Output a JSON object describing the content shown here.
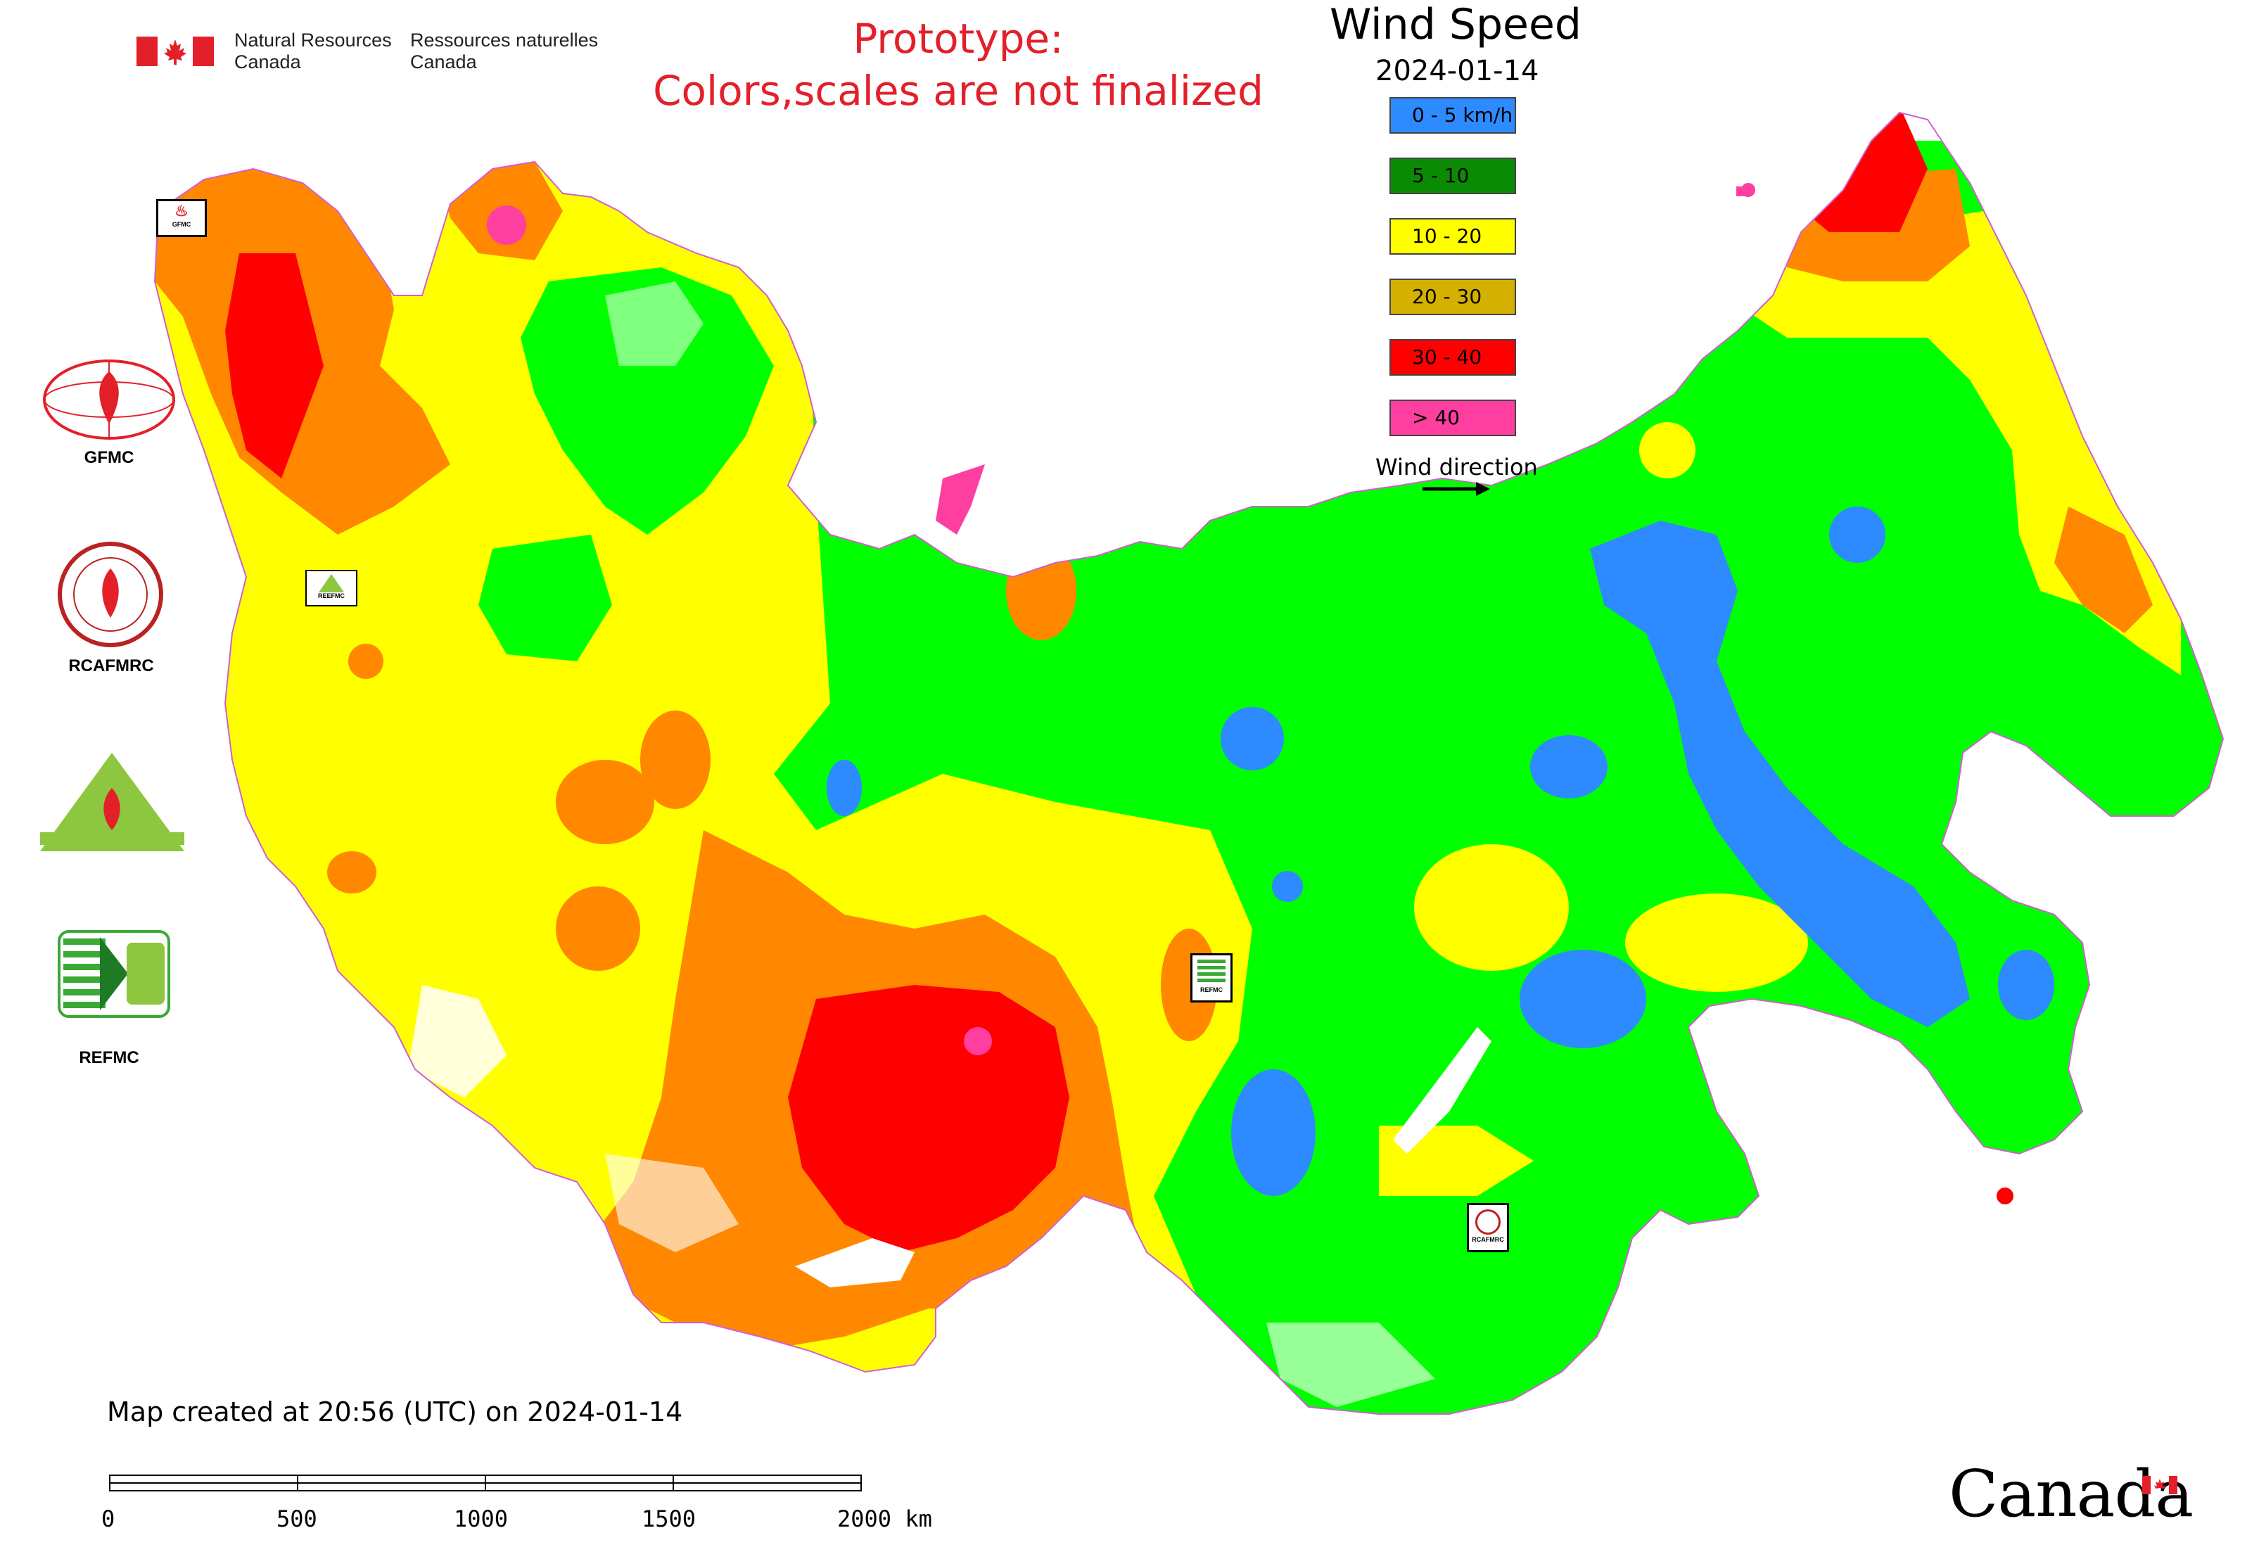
{
  "header": {
    "dept_en_line1": "Natural Resources",
    "dept_en_line2": "Canada",
    "dept_fr_line1": "Ressources naturelles",
    "dept_fr_line2": "Canada",
    "prototype_line1": "Prototype:",
    "prototype_line2": "Colors,scales are not finalized"
  },
  "legend": {
    "title": "Wind Speed",
    "date": "2024-01-14",
    "items": [
      {
        "label": "0 - 5 km/h",
        "color": "#2e8bff"
      },
      {
        "label": "5 - 10",
        "color": "#0b8a06"
      },
      {
        "label": "10 - 20",
        "color": "#ffff00"
      },
      {
        "label": "20 - 30",
        "color": "#d4b000"
      },
      {
        "label": "30 - 40",
        "color": "#ff0000"
      },
      {
        "label": "> 40",
        "color": "#ff3fa0"
      }
    ],
    "wind_direction_label": "Wind direction"
  },
  "logos": {
    "gfmc": "GFMC",
    "rcafmrc": "RCAFMRC",
    "reefmc": "REEFMC",
    "refmc": "REFMC"
  },
  "map_stamps": {
    "gfmc": "GFMC",
    "reefmc": "REEFMC",
    "refmc": "REFMC",
    "rcafmrc": "RCAFMRC"
  },
  "footer": {
    "created_text": "Map created at 20:56 (UTC) on 2024-01-14",
    "scale_ticks": [
      "0",
      "500",
      "1000",
      "1500",
      "2000 km"
    ],
    "wordmark": "Canada"
  },
  "map_colors": {
    "calm": "#2e8bff",
    "light": "#00ff00",
    "moderate": "#ffff00",
    "fresh": "#ff8800",
    "strong": "#ff0000",
    "gale": "#ff3fa0",
    "border": "#d060d0",
    "water": "#ffffff"
  },
  "icons": {
    "flag": "canada-flag-icon",
    "arrow": "wind-direction-arrow-icon"
  }
}
